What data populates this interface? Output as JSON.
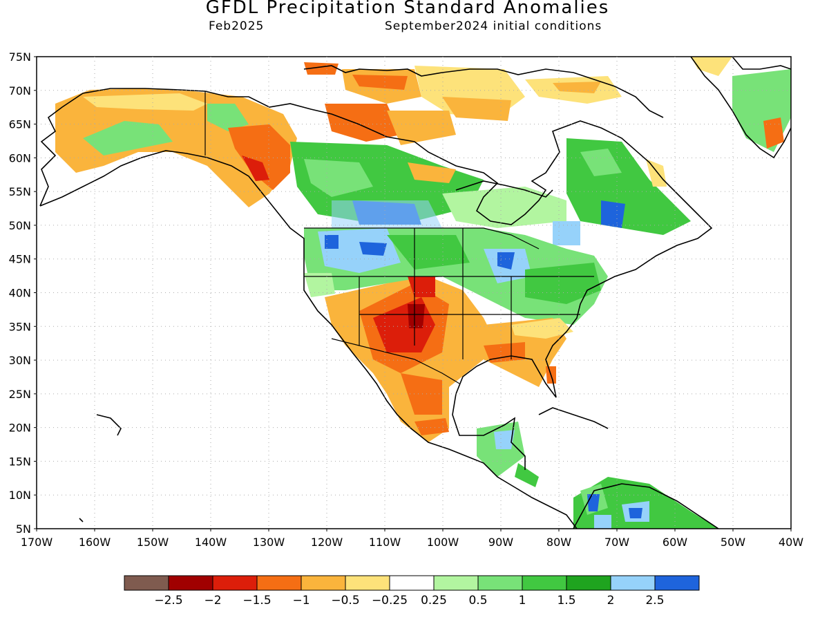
{
  "title": "GFDL Precipitation Standard Anomalies",
  "valid_month": "Feb2025",
  "init_label": "September2024 initial conditions",
  "lat_labels": [
    "75N",
    "70N",
    "65N",
    "60N",
    "55N",
    "50N",
    "45N",
    "40N",
    "35N",
    "30N",
    "25N",
    "20N",
    "15N",
    "10N",
    "5N"
  ],
  "lon_labels": [
    "170W",
    "160W",
    "150W",
    "140W",
    "130W",
    "120W",
    "110W",
    "100W",
    "90W",
    "80W",
    "70W",
    "60W",
    "50W",
    "40W"
  ],
  "colorbar": {
    "colors": [
      "#7f5b4f",
      "#a00000",
      "#dc1e0a",
      "#f56e14",
      "#fab43c",
      "#fde27a",
      "#ffffff",
      "#b2f5a0",
      "#78e278",
      "#41c841",
      "#1fa41f",
      "#96d2fa",
      "#1e64dc"
    ],
    "labels": [
      "-2.5",
      "-2",
      "-1.5",
      "-1",
      "-0.5",
      "-0.25",
      "0.25",
      "0.5",
      "1",
      "1.5",
      "2",
      "2.5"
    ]
  },
  "colors": {
    "land_line": "#000000",
    "grid": "#aaaaaa"
  }
}
